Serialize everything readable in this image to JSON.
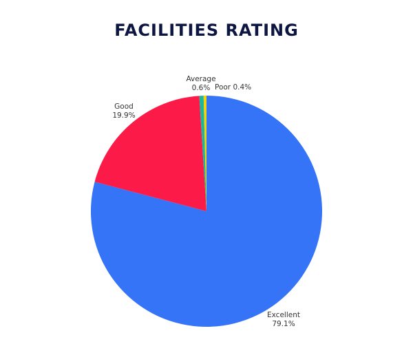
{
  "chart_data": {
    "type": "pie",
    "title": "FACILITIES RATING",
    "slices": [
      {
        "name": "Excellent",
        "value": 79.1,
        "label": "79.1%",
        "color": "#3573f7"
      },
      {
        "name": "Good",
        "value": 19.9,
        "label": "19.9%",
        "color": "#fc1a49"
      },
      {
        "name": "Average",
        "value": 0.6,
        "label": "0.6%",
        "color": "#1fb59a"
      },
      {
        "name": "Poor",
        "value": 0.4,
        "label": "0.4%",
        "color": "#f2d40c"
      }
    ],
    "legend": "none"
  }
}
